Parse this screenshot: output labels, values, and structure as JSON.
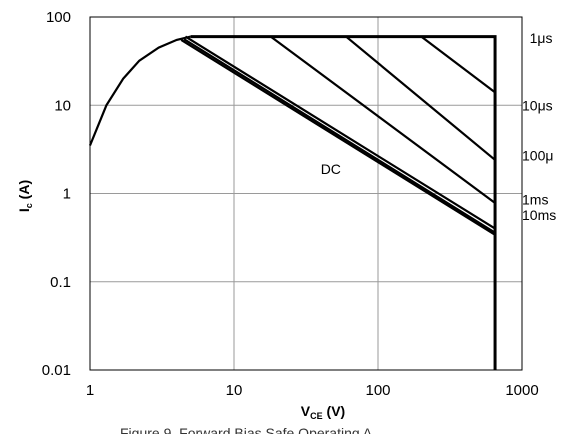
{
  "chart_data": {
    "type": "line",
    "title": "",
    "xlabel": "V",
    "xlabel_sub": "CE",
    "xlabel_unit": " (V)",
    "ylabel": "I",
    "ylabel_sub": "c",
    "ylabel_unit": " (A)",
    "x_scale": "log",
    "y_scale": "log",
    "xlim": [
      1,
      1000
    ],
    "ylim": [
      0.01,
      100
    ],
    "grid": true,
    "x_ticks": [
      {
        "value": 1,
        "label": "1"
      },
      {
        "value": 10,
        "label": "10"
      },
      {
        "value": 100,
        "label": "100"
      },
      {
        "value": 1000,
        "label": "1000"
      }
    ],
    "y_ticks": [
      {
        "value": 100,
        "label": "100"
      },
      {
        "value": 10,
        "label": "10"
      },
      {
        "value": 1,
        "label": "1"
      },
      {
        "value": 0.1,
        "label": "0.1"
      },
      {
        "value": 0.01,
        "label": "0.01"
      }
    ],
    "envelope": {
      "current_limit_A": 60,
      "voltage_limit_V": 650,
      "rise_curve": [
        [
          1.0,
          3.5
        ],
        [
          1.3,
          10
        ],
        [
          1.7,
          20
        ],
        [
          2.2,
          32
        ],
        [
          3.0,
          45
        ],
        [
          4.0,
          55
        ],
        [
          5.0,
          60
        ]
      ]
    },
    "series": [
      {
        "name": "1μs",
        "points": [
          [
            200,
            60
          ],
          [
            650,
            14
          ]
        ]
      },
      {
        "name": "10μs",
        "points": [
          [
            60,
            60
          ],
          [
            650,
            2.4
          ]
        ]
      },
      {
        "name": "100μ",
        "points": [
          [
            18,
            60
          ],
          [
            650,
            0.78
          ]
        ]
      },
      {
        "name": "1ms",
        "points": [
          [
            4.6,
            60
          ],
          [
            650,
            0.4
          ]
        ]
      },
      {
        "name": "10ms",
        "points": [
          [
            4.5,
            56
          ],
          [
            650,
            0.36
          ]
        ]
      },
      {
        "name": "DC",
        "points": [
          [
            4.3,
            55
          ],
          [
            650,
            0.34
          ]
        ]
      }
    ],
    "series_labels": [
      {
        "text": "1μs",
        "v": 1130,
        "i": 58
      },
      {
        "text": "10μs",
        "v": 1000,
        "i": 10
      },
      {
        "text": "100μ",
        "v": 1000,
        "i": 2.7
      },
      {
        "text": "1ms",
        "v": 1000,
        "i": 0.85
      },
      {
        "text": "10ms",
        "v": 1000,
        "i": 0.57
      }
    ],
    "annotation": {
      "text": "DC",
      "v": 40,
      "i": 1.9
    },
    "caption_partial": "Figure 9. Forward Bias Safe Operating A"
  }
}
